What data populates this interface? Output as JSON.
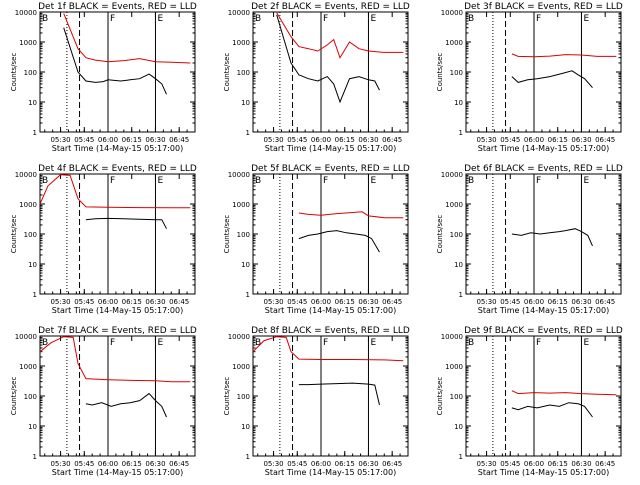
{
  "figure": {
    "ylabel": "Counts/sec",
    "xlabel": "Start Time (14-May-15 05:17:00)",
    "y_ticks": [
      "1",
      "10",
      "100",
      "1000",
      "10000"
    ],
    "x_ticks": [
      "05:30",
      "05:45",
      "06:00",
      "06:15",
      "06:30",
      "06:45"
    ],
    "x_range": [
      "05:17",
      "06:55"
    ],
    "y_range": [
      1,
      10000
    ],
    "y_scale": "log",
    "line_colors": {
      "events": "#000000",
      "lld": "#dd0000"
    }
  },
  "chart_data": [
    {
      "type": "line",
      "title": "Det 1f BLACK = Events, RED = LLD",
      "markers": [
        "B",
        "F",
        "E"
      ],
      "series": [
        {
          "name": "Events",
          "color": "#000000",
          "x": [
            "05:32",
            "05:41",
            "05:46",
            "05:52",
            "05:57",
            "06:00",
            "06:08",
            "06:14",
            "06:20",
            "06:26",
            "06:30",
            "06:34",
            "06:37"
          ],
          "y": [
            3000,
            100,
            50,
            45,
            48,
            55,
            50,
            55,
            60,
            85,
            60,
            40,
            18
          ]
        },
        {
          "name": "LLD",
          "color": "#dd0000",
          "x": [
            "05:32",
            "05:41",
            "05:46",
            "05:52",
            "05:57",
            "06:00",
            "06:10",
            "06:20",
            "06:30",
            "06:40",
            "06:52"
          ],
          "y": [
            9000,
            600,
            300,
            250,
            230,
            220,
            240,
            280,
            220,
            210,
            200
          ]
        }
      ]
    },
    {
      "type": "line",
      "title": "Det 2f BLACK = Events, RED = LLD",
      "markers": [
        "B",
        "F",
        "E"
      ],
      "series": [
        {
          "name": "Events",
          "color": "#000000",
          "x": [
            "05:32",
            "05:41",
            "05:46",
            "05:52",
            "05:58",
            "06:04",
            "06:08",
            "06:12",
            "06:18",
            "06:24",
            "06:30",
            "06:34",
            "06:37"
          ],
          "y": [
            8000,
            200,
            80,
            60,
            50,
            70,
            40,
            10,
            60,
            70,
            55,
            50,
            25
          ]
        },
        {
          "name": "LLD",
          "color": "#dd0000",
          "x": [
            "05:32",
            "05:41",
            "05:46",
            "05:52",
            "05:58",
            "06:04",
            "06:08",
            "06:12",
            "06:18",
            "06:24",
            "06:30",
            "06:40",
            "06:52"
          ],
          "y": [
            9500,
            1500,
            700,
            600,
            500,
            800,
            1200,
            300,
            1000,
            600,
            500,
            450,
            450
          ]
        }
      ]
    },
    {
      "type": "line",
      "title": "Det 3f BLACK = Events, RED = LLD",
      "markers": [
        "B",
        "F",
        "E"
      ],
      "series": [
        {
          "name": "Events",
          "color": "#000000",
          "x": [
            "05:46",
            "05:50",
            "05:56",
            "06:02",
            "06:10",
            "06:18",
            "06:24",
            "06:28",
            "06:32",
            "06:37"
          ],
          "y": [
            70,
            45,
            55,
            60,
            70,
            90,
            110,
            80,
            60,
            30
          ]
        },
        {
          "name": "LLD",
          "color": "#dd0000",
          "x": [
            "05:46",
            "05:50",
            "06:00",
            "06:10",
            "06:20",
            "06:30",
            "06:40",
            "06:52"
          ],
          "y": [
            400,
            330,
            320,
            340,
            380,
            370,
            330,
            330
          ]
        }
      ]
    },
    {
      "type": "line",
      "title": "Det 4f BLACK = Events, RED = LLD",
      "markers": [
        "B",
        "F",
        "E"
      ],
      "series": [
        {
          "name": "Events",
          "color": "#000000",
          "x": [
            "05:46",
            "05:52",
            "06:00",
            "06:10",
            "06:20",
            "06:30",
            "06:34",
            "06:37"
          ],
          "y": [
            300,
            320,
            330,
            320,
            310,
            300,
            300,
            150
          ]
        },
        {
          "name": "LLD",
          "color": "#dd0000",
          "x": [
            "05:17",
            "05:22",
            "05:30",
            "05:36",
            "05:41",
            "05:46",
            "06:00",
            "06:20",
            "06:40",
            "06:52"
          ],
          "y": [
            1000,
            4000,
            9500,
            9000,
            1500,
            800,
            780,
            760,
            750,
            750
          ]
        }
      ]
    },
    {
      "type": "line",
      "title": "Det 5f BLACK = Events, RED = LLD",
      "markers": [
        "B",
        "F",
        "E"
      ],
      "series": [
        {
          "name": "Events",
          "color": "#000000",
          "x": [
            "05:46",
            "05:52",
            "05:58",
            "06:04",
            "06:10",
            "06:16",
            "06:22",
            "06:28",
            "06:32",
            "06:37"
          ],
          "y": [
            70,
            90,
            100,
            120,
            130,
            110,
            100,
            90,
            70,
            25
          ]
        },
        {
          "name": "LLD",
          "color": "#dd0000",
          "x": [
            "05:46",
            "05:52",
            "06:00",
            "06:10",
            "06:20",
            "06:26",
            "06:30",
            "06:40",
            "06:52"
          ],
          "y": [
            500,
            450,
            420,
            480,
            520,
            550,
            400,
            350,
            350
          ]
        }
      ]
    },
    {
      "type": "line",
      "title": "Det 6f BLACK = Events, RED = LLD",
      "markers": [
        "B",
        "F",
        "E"
      ],
      "series": [
        {
          "name": "Events",
          "color": "#000000",
          "x": [
            "05:46",
            "05:52",
            "05:58",
            "06:04",
            "06:10",
            "06:16",
            "06:20",
            "06:26",
            "06:30",
            "06:34",
            "06:37"
          ],
          "y": [
            100,
            90,
            110,
            100,
            110,
            120,
            130,
            150,
            120,
            90,
            40
          ]
        }
      ]
    },
    {
      "type": "line",
      "title": "Det 7f BLACK = Events, RED = LLD",
      "markers": [
        "B",
        "F",
        "E"
      ],
      "series": [
        {
          "name": "Events",
          "color": "#000000",
          "x": [
            "05:46",
            "05:50",
            "05:56",
            "06:02",
            "06:08",
            "06:14",
            "06:20",
            "06:26",
            "06:30",
            "06:34",
            "06:37"
          ],
          "y": [
            55,
            50,
            60,
            45,
            55,
            60,
            70,
            120,
            70,
            45,
            20
          ]
        },
        {
          "name": "LLD",
          "color": "#dd0000",
          "x": [
            "05:17",
            "05:24",
            "05:32",
            "05:38",
            "05:41",
            "05:46",
            "06:00",
            "06:15",
            "06:30",
            "06:40",
            "06:52"
          ],
          "y": [
            3000,
            6000,
            9500,
            9000,
            1200,
            380,
            350,
            330,
            320,
            300,
            300
          ]
        }
      ]
    },
    {
      "type": "line",
      "title": "Det 8f BLACK = Events, RED = LLD",
      "markers": [
        "B",
        "F",
        "E"
      ],
      "series": [
        {
          "name": "Events",
          "color": "#000000",
          "x": [
            "05:46",
            "05:52",
            "06:00",
            "06:10",
            "06:20",
            "06:30",
            "06:34",
            "06:37"
          ],
          "y": [
            240,
            240,
            250,
            260,
            270,
            250,
            230,
            50
          ]
        },
        {
          "name": "LLD",
          "color": "#dd0000",
          "x": [
            "05:17",
            "05:24",
            "05:32",
            "05:38",
            "05:41",
            "05:46",
            "06:00",
            "06:20",
            "06:40",
            "06:52"
          ],
          "y": [
            3000,
            7000,
            9500,
            9000,
            3000,
            1700,
            1650,
            1650,
            1600,
            1500
          ]
        }
      ]
    },
    {
      "type": "line",
      "title": "Det 9f BLACK = Events, RED = LLD",
      "markers": [
        "B",
        "F",
        "E"
      ],
      "series": [
        {
          "name": "Events",
          "color": "#000000",
          "x": [
            "05:46",
            "05:50",
            "05:56",
            "06:02",
            "06:10",
            "06:16",
            "06:22",
            "06:28",
            "06:32",
            "06:37"
          ],
          "y": [
            40,
            35,
            45,
            40,
            50,
            45,
            60,
            55,
            45,
            20
          ]
        },
        {
          "name": "LLD",
          "color": "#dd0000",
          "x": [
            "05:46",
            "05:50",
            "06:00",
            "06:10",
            "06:20",
            "06:30",
            "06:40",
            "06:52"
          ],
          "y": [
            150,
            120,
            130,
            125,
            130,
            120,
            115,
            110
          ]
        }
      ]
    }
  ]
}
